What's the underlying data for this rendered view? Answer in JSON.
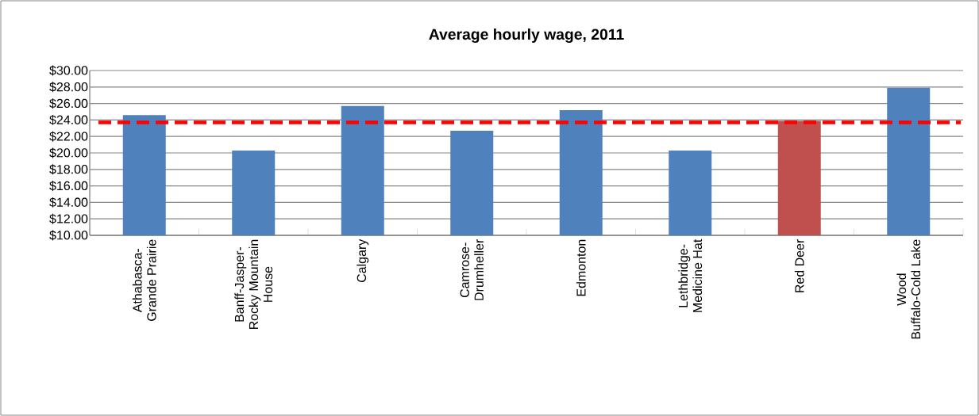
{
  "chart_data": {
    "type": "bar",
    "title": "Average hourly wage, 2011",
    "categories": [
      "Athabasca- Grande Prairie",
      "Banff-Jasper- Rocky Mountain House",
      "Calgary",
      "Camrose- Drumheller",
      "Edmonton",
      "Lethbridge- Medicine Hat",
      "Red Deer",
      "Wood Buffalo-Cold Lake"
    ],
    "values": [
      24.6,
      20.3,
      25.7,
      22.7,
      25.2,
      20.3,
      23.9,
      27.9
    ],
    "colors": [
      "#4f81bd",
      "#4f81bd",
      "#4f81bd",
      "#4f81bd",
      "#4f81bd",
      "#4f81bd",
      "#c0504d",
      "#4f81bd"
    ],
    "ylim": [
      10,
      30
    ],
    "yticks": [
      {
        "value": 10,
        "label": "$10.00"
      },
      {
        "value": 12,
        "label": "$12.00"
      },
      {
        "value": 14,
        "label": "$14.00"
      },
      {
        "value": 16,
        "label": "$16.00"
      },
      {
        "value": 18,
        "label": "$18.00"
      },
      {
        "value": 20,
        "label": "$20.00"
      },
      {
        "value": 22,
        "label": "$22.00"
      },
      {
        "value": 24,
        "label": "$24.00"
      },
      {
        "value": 26,
        "label": "$26.00"
      },
      {
        "value": 28,
        "label": "$28.00"
      },
      {
        "value": 30,
        "label": "$30.00"
      }
    ],
    "grid": "y",
    "ref_lines": [
      {
        "axis": "y",
        "value": 23.7,
        "color": "#ff0000",
        "line_style": "dashed"
      }
    ]
  }
}
